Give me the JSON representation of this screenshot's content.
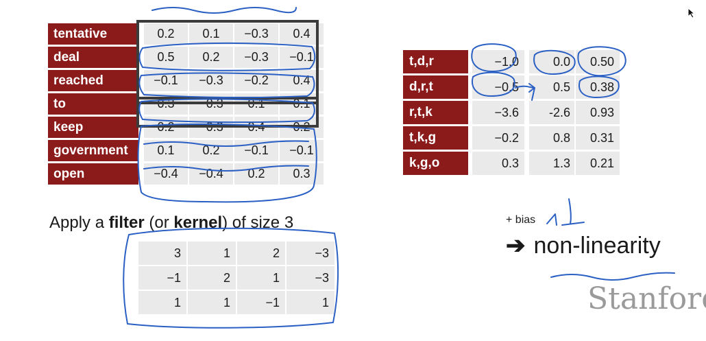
{
  "word_matrix": {
    "rows": [
      {
        "word": "tentative",
        "values": [
          "0.2",
          "0.1",
          "−0.3",
          "0.4"
        ]
      },
      {
        "word": "deal",
        "values": [
          "0.5",
          "0.2",
          "−0.3",
          "−0.1"
        ]
      },
      {
        "word": "reached",
        "values": [
          "−0.1",
          "−0.3",
          "−0.2",
          "0.4"
        ]
      },
      {
        "word": "to",
        "values": [
          "0.3",
          "−0.3",
          "0.1",
          "0.1"
        ]
      },
      {
        "word": "keep",
        "values": [
          "0.2",
          "−0.3",
          "0.4",
          "0.2"
        ]
      },
      {
        "word": "government",
        "values": [
          "0.1",
          "0.2",
          "−0.1",
          "−0.1"
        ]
      },
      {
        "word": "open",
        "values": [
          "−0.4",
          "−0.4",
          "0.2",
          "0.3"
        ]
      }
    ]
  },
  "filter": {
    "caption": {
      "pre": "Apply a ",
      "b1": "filter",
      "mid": " (or ",
      "b2": "kernel",
      "post": ") of size 3"
    },
    "rows": [
      [
        "3",
        "1",
        "2",
        "−3"
      ],
      [
        "−1",
        "2",
        "1",
        "−3"
      ],
      [
        "1",
        "1",
        "−1",
        "1"
      ]
    ]
  },
  "conv_output": {
    "rows": [
      {
        "ngram": "t,d,r",
        "value": "−1.0"
      },
      {
        "ngram": "d,r,t",
        "value": "−0.5"
      },
      {
        "ngram": "r,t,k",
        "value": "−3.6"
      },
      {
        "ngram": "t,k,g",
        "value": "−0.2"
      },
      {
        "ngram": "k,g,o",
        "value": "0.3"
      }
    ]
  },
  "activated_output": {
    "rows": [
      [
        "0.0",
        "0.50"
      ],
      [
        "0.5",
        "0.38"
      ],
      [
        "-2.6",
        "0.93"
      ],
      [
        "0.8",
        "0.31"
      ],
      [
        "1.3",
        "0.21"
      ]
    ]
  },
  "annotations": {
    "bias": "+ bias",
    "arrow": "➔",
    "nonlinearity": "non-linearity"
  },
  "brand": "Stanford",
  "colors": {
    "label_bg": "#8b1a1a",
    "cell_bg": "#eaeaea",
    "ink": "#2a5fc4",
    "frame": "#3b3b3b"
  }
}
